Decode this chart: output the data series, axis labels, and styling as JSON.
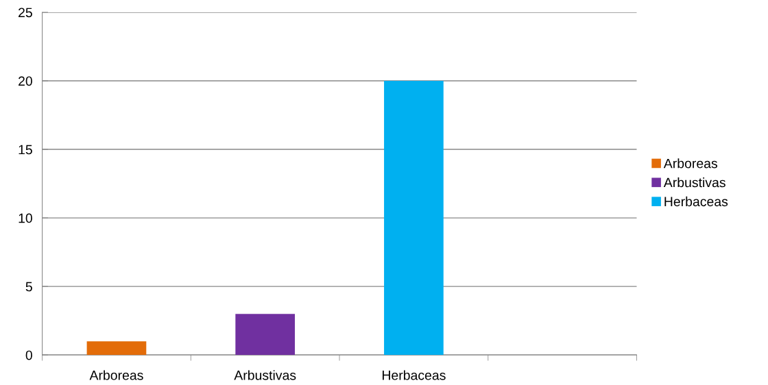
{
  "chart_data": {
    "type": "bar",
    "categories": [
      "Arboreas",
      "Arbustivas",
      "Herbaceas",
      null
    ],
    "series": [
      {
        "name": "Arboreas",
        "color": "#e36c09",
        "values": [
          1,
          null,
          null,
          null
        ]
      },
      {
        "name": "Arbustivas",
        "color": "#7030a0",
        "values": [
          null,
          3,
          null,
          null
        ]
      },
      {
        "name": "Herbaceas",
        "color": "#00b0f0",
        "values": [
          null,
          null,
          20,
          null
        ]
      }
    ],
    "ylim": [
      0,
      25
    ],
    "yticks": [
      0,
      5,
      10,
      15,
      20,
      25
    ],
    "grid": "y",
    "legend": "right"
  }
}
